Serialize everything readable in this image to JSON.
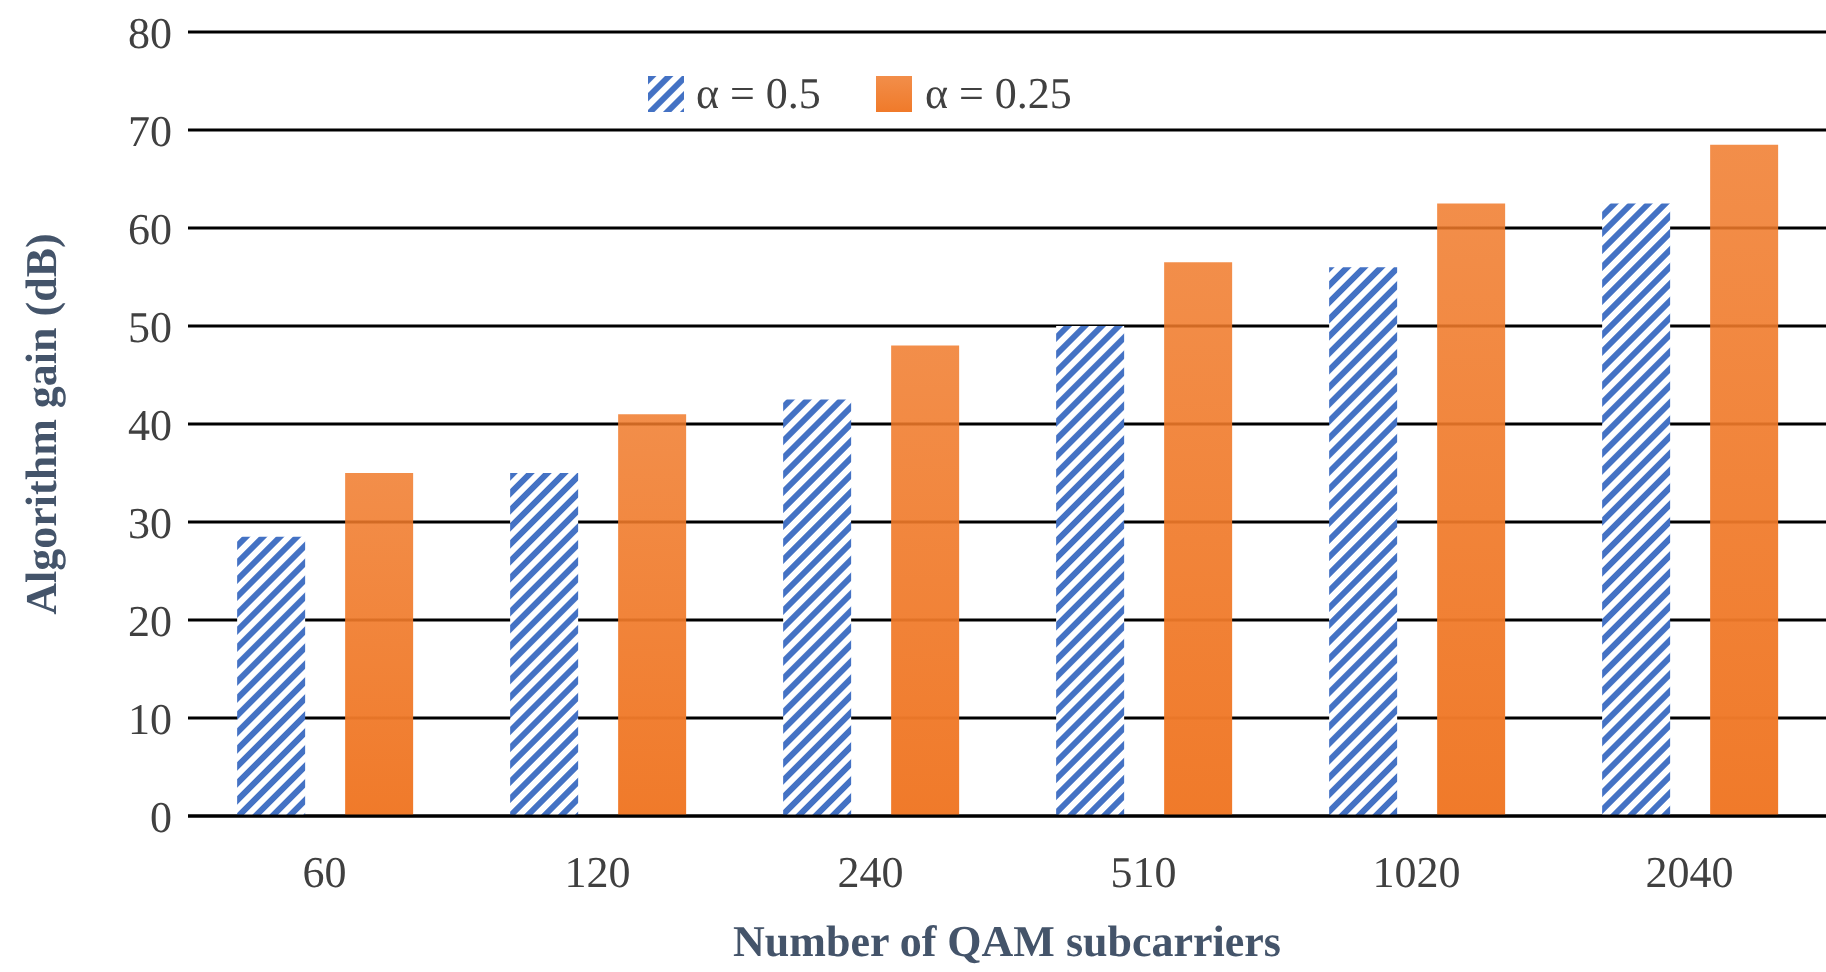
{
  "chart_data": {
    "type": "bar",
    "xlabel": "Number of QAM subcarriers",
    "ylabel": "Algorithm gain (dB)",
    "categories": [
      "60",
      "120",
      "240",
      "510",
      "1020",
      "2040"
    ],
    "series": [
      {
        "name": "α = 0.5",
        "color": "#4472c4",
        "values": [
          28.5,
          35,
          42.5,
          50,
          56,
          62.5
        ]
      },
      {
        "name": "α = 0.25",
        "color": "#f07a2a",
        "values": [
          35,
          41,
          48,
          56.5,
          62.5,
          68.5
        ]
      }
    ],
    "ylim": [
      0,
      80
    ],
    "yticks": [
      0,
      10,
      20,
      30,
      40,
      50,
      60,
      70,
      80
    ],
    "grid": "y",
    "legend": "top"
  }
}
